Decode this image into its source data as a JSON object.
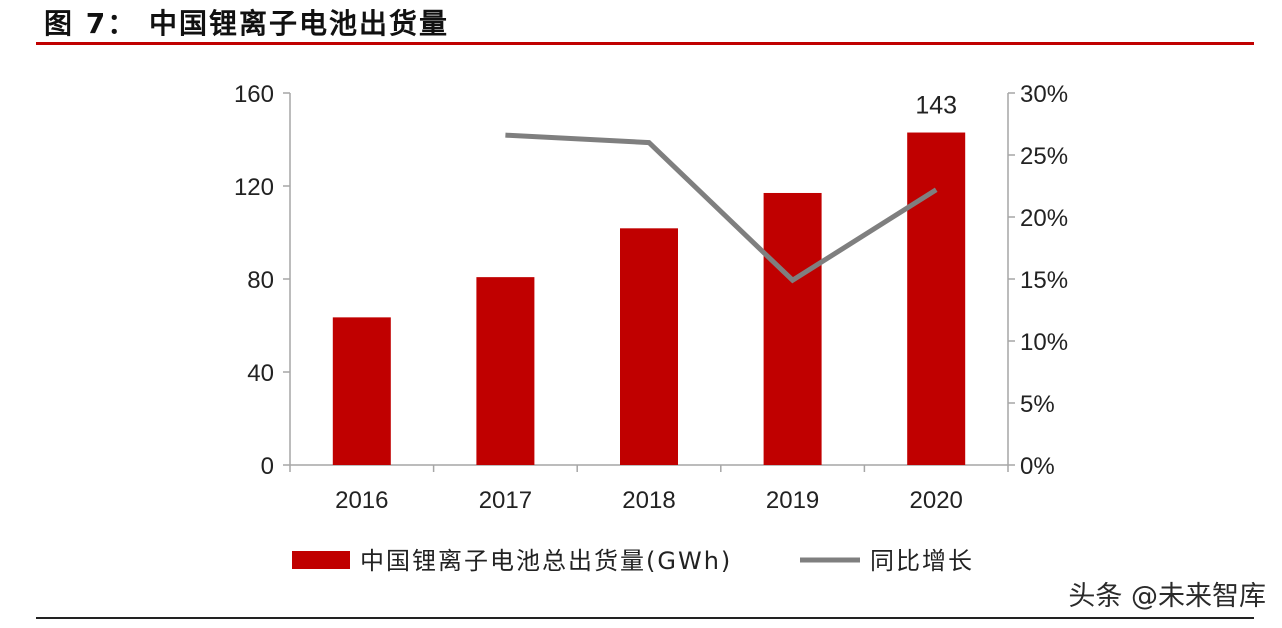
{
  "header": {
    "figure_title": "图 7： 中国锂离子电池出货量"
  },
  "watermark": "头条 @未来智库",
  "chart_data": {
    "type": "bar",
    "categories": [
      "2016",
      "2017",
      "2018",
      "2019",
      "2020"
    ],
    "series": [
      {
        "name": "中国锂离子电池总出货量(GWh)",
        "type": "bar",
        "axis": "left",
        "color": "#c00000",
        "values": [
          63.5,
          80.8,
          101.8,
          117,
          143
        ]
      },
      {
        "name": "同比增长",
        "type": "line",
        "axis": "right",
        "color": "#7f7f7f",
        "values": [
          null,
          0.266,
          0.26,
          0.149,
          0.222
        ]
      }
    ],
    "data_labels": [
      {
        "category": "2020",
        "series": "中国锂离子电池总出货量(GWh)",
        "text": "143"
      }
    ],
    "y_left": {
      "min": 0,
      "max": 160,
      "ticks": [
        0,
        40,
        80,
        120,
        160
      ],
      "tick_labels": [
        "0",
        "40",
        "80",
        "120",
        "160"
      ]
    },
    "y_right": {
      "min": 0,
      "max": 0.3,
      "ticks": [
        0,
        0.05,
        0.1,
        0.15,
        0.2,
        0.25,
        0.3
      ],
      "tick_labels": [
        "0%",
        "5%",
        "10%",
        "15%",
        "20%",
        "25%",
        "30%"
      ]
    },
    "grid": false,
    "legend_position": "bottom"
  }
}
